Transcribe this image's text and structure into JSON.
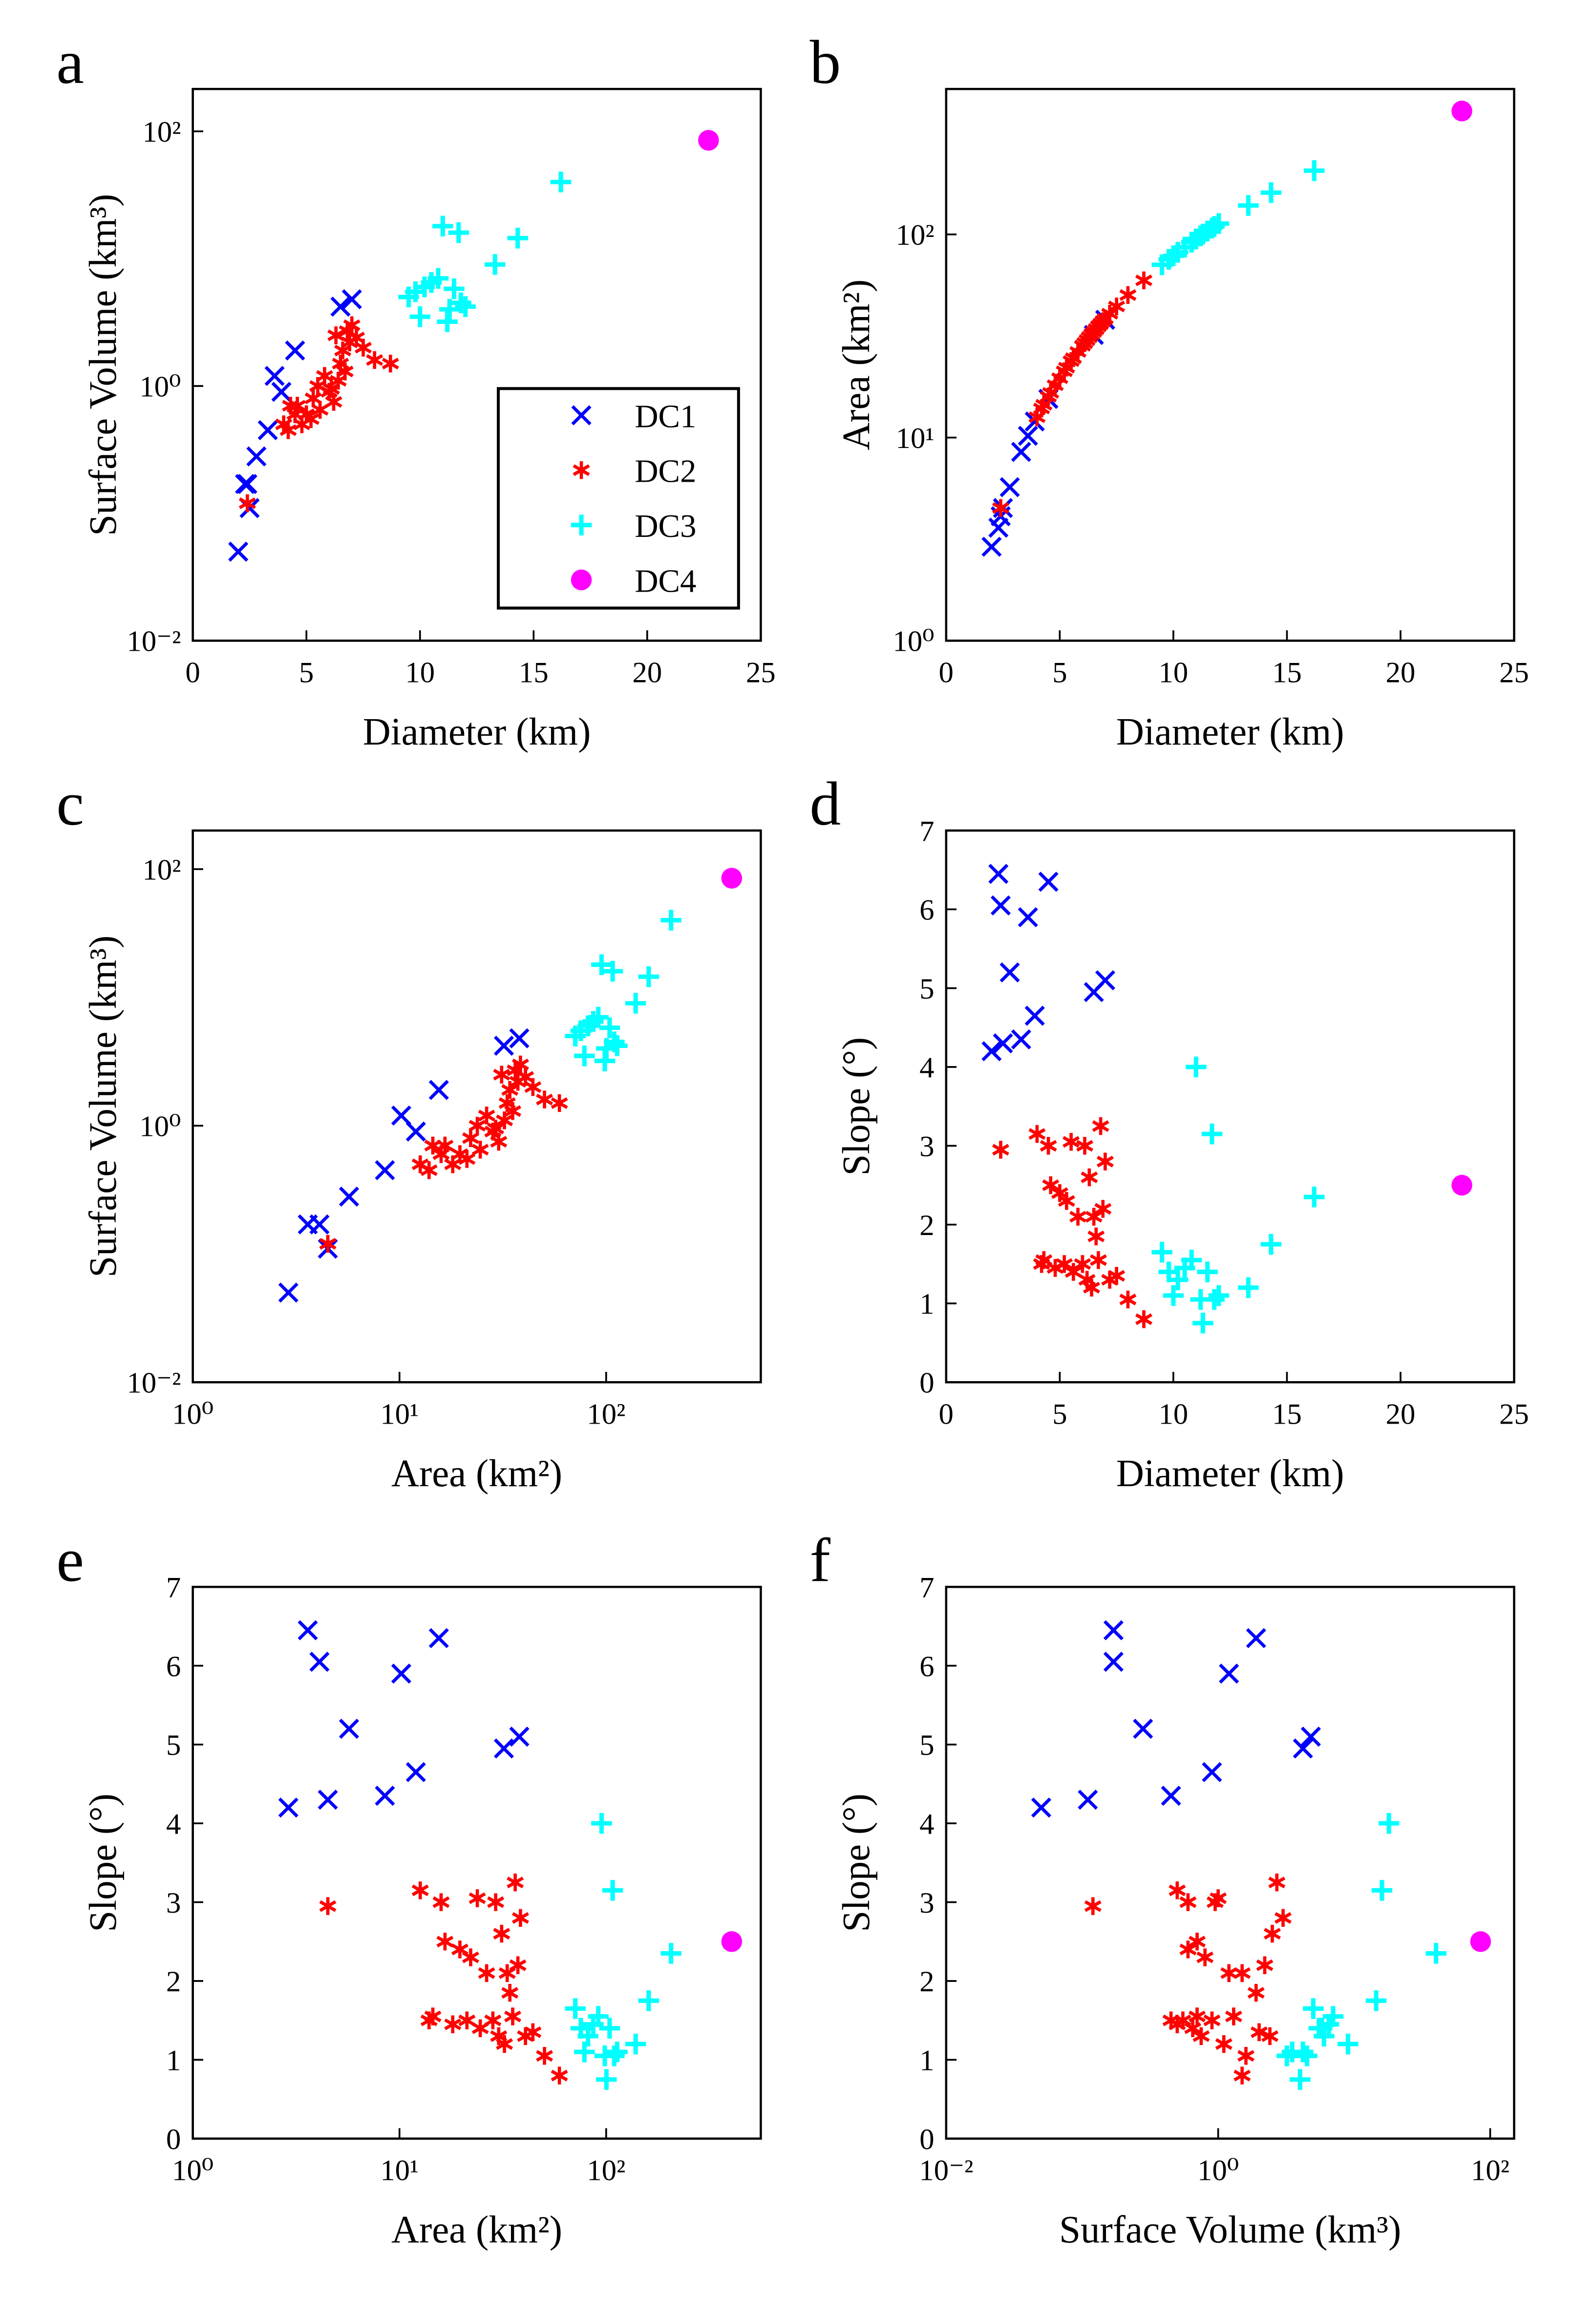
{
  "chart_data": [
    {
      "type": "scatter",
      "label": "a",
      "xlabel": "Diameter (km)",
      "ylabel": "Surface Volume (km³)",
      "xlim": [
        0,
        25
      ],
      "xticks": [
        0,
        5,
        10,
        15,
        20,
        25
      ],
      "xscale": "linear",
      "ylim": [
        0.01,
        215
      ],
      "yticks": [
        {
          "value": 0.01,
          "label": "10⁻²"
        },
        {
          "value": 1,
          "label": "10⁰"
        },
        {
          "value": 100,
          "label": "10²"
        }
      ],
      "yscale": "log",
      "legend": "lower right",
      "series": [
        {
          "name": "DC1",
          "color": "#0000ff",
          "marker": "x",
          "x": [
            2.0,
            2.3,
            2.4,
            2.5,
            2.8,
            3.3,
            3.6,
            3.9,
            4.5,
            6.5,
            7.0
          ],
          "y": [
            0.05,
            0.17,
            0.17,
            0.11,
            0.28,
            0.45,
            1.2,
            0.9,
            1.9,
            4.2,
            4.8
          ]
        },
        {
          "name": "DC2",
          "color": "#ff0000",
          "marker": "*",
          "x": [
            2.4,
            4.0,
            4.2,
            4.3,
            4.5,
            4.6,
            4.8,
            5.0,
            5.2,
            5.3,
            5.5,
            5.6,
            5.8,
            6.0,
            6.1,
            6.2,
            6.3,
            6.4,
            6.5,
            6.6,
            6.7,
            6.8,
            6.9,
            7.0,
            7.2,
            7.5,
            8.0,
            8.7
          ],
          "y": [
            0.12,
            0.5,
            0.45,
            0.7,
            0.6,
            0.7,
            0.5,
            0.6,
            0.55,
            0.8,
            1.0,
            0.65,
            1.2,
            0.9,
            0.95,
            0.75,
            2.5,
            1.1,
            1.5,
            1.9,
            1.3,
            2.7,
            2.2,
            3.0,
            2.4,
            2.0,
            1.6,
            1.5
          ]
        },
        {
          "name": "DC3",
          "color": "#00ffff",
          "marker": "+",
          "x": [
            9.5,
            9.8,
            10.0,
            10.2,
            10.5,
            10.8,
            11.0,
            11.2,
            11.3,
            11.5,
            11.7,
            11.8,
            12.0,
            13.3,
            14.3,
            16.2
          ],
          "y": [
            5.0,
            5.5,
            3.5,
            6.0,
            6.5,
            7.0,
            18,
            3.2,
            4.0,
            5.8,
            16,
            4.5,
            4.2,
            9,
            14.5,
            40
          ]
        },
        {
          "name": "DC4",
          "color": "#ff00ff",
          "marker": "o",
          "x": [
            22.7
          ],
          "y": [
            85
          ]
        }
      ]
    },
    {
      "type": "scatter",
      "label": "b",
      "xlabel": "Diameter (km)",
      "ylabel": "Area (km²)",
      "xlim": [
        0,
        25
      ],
      "xticks": [
        0,
        5,
        10,
        15,
        20,
        25
      ],
      "xscale": "linear",
      "ylim": [
        1,
        520
      ],
      "yticks": [
        {
          "value": 1,
          "label": "10⁰"
        },
        {
          "value": 10,
          "label": "10¹"
        },
        {
          "value": 100,
          "label": "10²"
        }
      ],
      "yscale": "log",
      "series": [
        {
          "color": "#0000ff",
          "marker": "x",
          "x": [
            2.0,
            2.3,
            2.4,
            2.5,
            2.8,
            3.3,
            3.6,
            3.9,
            4.5,
            6.5,
            7.0
          ],
          "y": [
            2.9,
            3.6,
            4.1,
            4.5,
            5.7,
            8.5,
            10.2,
            12,
            15.5,
            32,
            38
          ]
        },
        {
          "color": "#ff0000",
          "marker": "*",
          "x": [
            2.4,
            4.0,
            4.2,
            4.3,
            4.5,
            4.6,
            4.8,
            5.0,
            5.2,
            5.3,
            5.5,
            5.6,
            5.8,
            6.0,
            6.1,
            6.2,
            6.3,
            6.4,
            6.5,
            6.6,
            6.7,
            6.8,
            6.9,
            7.0,
            7.2,
            7.5,
            8.0,
            8.7
          ],
          "y": [
            4.5,
            12.6,
            13.9,
            14.5,
            15.9,
            16.6,
            18.1,
            19.6,
            21.2,
            22.1,
            23.8,
            24.6,
            26.4,
            28.3,
            29.2,
            30.2,
            31.2,
            32.2,
            33.2,
            34.2,
            35.3,
            36.3,
            37.4,
            38.5,
            40.7,
            44.2,
            50.3,
            59.4
          ]
        },
        {
          "color": "#00ffff",
          "marker": "+",
          "x": [
            9.5,
            9.8,
            10.0,
            10.2,
            10.5,
            10.8,
            11.0,
            11.2,
            11.3,
            11.5,
            11.7,
            11.8,
            12.0,
            13.3,
            14.3,
            16.2
          ],
          "y": [
            70.9,
            75.4,
            78.5,
            81.7,
            86.6,
            91.6,
            95.0,
            98.5,
            100.3,
            103.9,
            107.5,
            109.4,
            113.1,
            138.9,
            160.6,
            206.1
          ]
        },
        {
          "color": "#ff00ff",
          "marker": "o",
          "x": [
            22.7
          ],
          "y": [
            405
          ]
        }
      ]
    },
    {
      "type": "scatter",
      "label": "c",
      "xlabel": "Area  (km²)",
      "ylabel": "Surface Volume (km³)",
      "xlim": [
        1,
        560
      ],
      "xticks": [
        {
          "value": 1,
          "label": "10⁰"
        },
        {
          "value": 10,
          "label": "10¹"
        },
        {
          "value": 100,
          "label": "10²"
        }
      ],
      "xscale": "log",
      "ylim": [
        0.01,
        200
      ],
      "yticks": [
        {
          "value": 0.01,
          "label": "10⁻²"
        },
        {
          "value": 1,
          "label": "10⁰"
        },
        {
          "value": 100,
          "label": "10²"
        }
      ],
      "yscale": "log",
      "series": [
        {
          "color": "#0000ff",
          "marker": "x",
          "x": [
            2.9,
            3.6,
            4.1,
            4.5,
            5.7,
            8.5,
            10.2,
            12,
            15.5,
            32,
            38
          ],
          "y": [
            0.05,
            0.17,
            0.17,
            0.11,
            0.28,
            0.45,
            1.2,
            0.9,
            1.9,
            4.2,
            4.8
          ]
        },
        {
          "color": "#ff0000",
          "marker": "*",
          "x": [
            4.5,
            12.6,
            13.9,
            14.5,
            15.9,
            16.6,
            18.1,
            19.6,
            21.2,
            22.1,
            23.8,
            24.6,
            26.4,
            28.3,
            29.2,
            30.2,
            31.2,
            32.2,
            33.2,
            34.2,
            35.3,
            36.3,
            37.4,
            38.5,
            40.7,
            44.2,
            50.3,
            59.4
          ],
          "y": [
            0.12,
            0.5,
            0.45,
            0.7,
            0.6,
            0.7,
            0.5,
            0.6,
            0.55,
            0.8,
            1.0,
            0.65,
            1.2,
            0.9,
            0.95,
            0.75,
            2.5,
            1.1,
            1.5,
            1.9,
            1.3,
            2.7,
            2.2,
            3.0,
            2.4,
            2.0,
            1.6,
            1.5
          ]
        },
        {
          "color": "#00ffff",
          "marker": "+",
          "x": [
            70.9,
            75.4,
            78.5,
            81.7,
            86.6,
            91.6,
            95.0,
            98.5,
            100.3,
            103.9,
            107.5,
            109.4,
            113.1,
            138.9,
            160.6,
            206.1
          ],
          "y": [
            5.0,
            5.5,
            3.5,
            6.0,
            6.5,
            7.0,
            18,
            3.2,
            4.0,
            5.8,
            16,
            4.5,
            4.2,
            9,
            14.5,
            40
          ]
        },
        {
          "color": "#ff00ff",
          "marker": "o",
          "x": [
            405
          ],
          "y": [
            85
          ]
        }
      ]
    },
    {
      "type": "scatter",
      "label": "d",
      "xlabel": "Diameter (km)",
      "ylabel": "Slope (°)",
      "xlim": [
        0,
        25
      ],
      "xticks": [
        0,
        5,
        10,
        15,
        20,
        25
      ],
      "xscale": "linear",
      "ylim": [
        0,
        7
      ],
      "yticks": [
        0,
        1,
        2,
        3,
        4,
        5,
        6,
        7
      ],
      "yscale": "linear",
      "series": [
        {
          "color": "#0000ff",
          "marker": "x",
          "x": [
            2.0,
            2.3,
            2.4,
            2.5,
            2.8,
            3.3,
            3.6,
            3.9,
            4.5,
            6.5,
            7.0
          ],
          "y": [
            4.2,
            6.45,
            6.05,
            4.3,
            5.2,
            4.35,
            5.9,
            4.65,
            6.35,
            4.95,
            5.1
          ]
        },
        {
          "color": "#ff0000",
          "marker": "*",
          "x": [
            2.4,
            4.0,
            4.2,
            4.3,
            4.5,
            4.6,
            4.8,
            5.0,
            5.2,
            5.3,
            5.5,
            5.6,
            5.8,
            6.0,
            6.1,
            6.2,
            6.3,
            6.4,
            6.5,
            6.6,
            6.7,
            6.8,
            6.9,
            7.0,
            7.2,
            7.5,
            8.0,
            8.7
          ],
          "y": [
            2.95,
            3.15,
            1.5,
            1.55,
            3.0,
            2.5,
            1.45,
            2.4,
            1.5,
            2.3,
            3.05,
            1.4,
            2.1,
            1.5,
            3.0,
            1.3,
            2.6,
            1.2,
            2.1,
            1.85,
            1.55,
            3.25,
            2.2,
            2.8,
            1.3,
            1.35,
            1.05,
            0.8
          ]
        },
        {
          "color": "#00ffff",
          "marker": "+",
          "x": [
            9.5,
            9.8,
            10.0,
            10.2,
            10.5,
            10.8,
            11.0,
            11.2,
            11.3,
            11.5,
            11.7,
            11.8,
            12.0,
            13.3,
            14.3,
            16.2
          ],
          "y": [
            1.65,
            1.4,
            1.1,
            1.3,
            1.45,
            1.55,
            4.0,
            1.05,
            0.75,
            1.4,
            3.15,
            1.05,
            1.1,
            1.2,
            1.75,
            2.35
          ]
        },
        {
          "color": "#ff00ff",
          "marker": "o",
          "x": [
            22.7
          ],
          "y": [
            2.5
          ]
        }
      ]
    },
    {
      "type": "scatter",
      "label": "e",
      "xlabel": "Area  (km²)",
      "ylabel": "Slope (°)",
      "xlim": [
        1,
        560
      ],
      "xticks": [
        {
          "value": 1,
          "label": "10⁰"
        },
        {
          "value": 10,
          "label": "10¹"
        },
        {
          "value": 100,
          "label": "10²"
        }
      ],
      "xscale": "log",
      "ylim": [
        0,
        7
      ],
      "yticks": [
        0,
        1,
        2,
        3,
        4,
        5,
        6,
        7
      ],
      "yscale": "linear",
      "series": [
        {
          "color": "#0000ff",
          "marker": "x",
          "x": [
            2.9,
            3.6,
            4.1,
            4.5,
            5.7,
            8.5,
            10.2,
            12,
            15.5,
            32,
            38
          ],
          "y": [
            4.2,
            6.45,
            6.05,
            4.3,
            5.2,
            4.35,
            5.9,
            4.65,
            6.35,
            4.95,
            5.1
          ]
        },
        {
          "color": "#ff0000",
          "marker": "*",
          "x": [
            4.5,
            12.6,
            13.9,
            14.5,
            15.9,
            16.6,
            18.1,
            19.6,
            21.2,
            22.1,
            23.8,
            24.6,
            26.4,
            28.3,
            29.2,
            30.2,
            31.2,
            32.2,
            33.2,
            34.2,
            35.3,
            36.3,
            37.4,
            38.5,
            40.7,
            44.2,
            50.3,
            59.4
          ],
          "y": [
            2.95,
            3.15,
            1.5,
            1.55,
            3.0,
            2.5,
            1.45,
            2.4,
            1.5,
            2.3,
            3.05,
            1.4,
            2.1,
            1.5,
            3.0,
            1.3,
            2.6,
            1.2,
            2.1,
            1.85,
            1.55,
            3.25,
            2.2,
            2.8,
            1.3,
            1.35,
            1.05,
            0.8
          ]
        },
        {
          "color": "#00ffff",
          "marker": "+",
          "x": [
            70.9,
            75.4,
            78.5,
            81.7,
            86.6,
            91.6,
            95.0,
            98.5,
            100.3,
            103.9,
            107.5,
            109.4,
            113.1,
            138.9,
            160.6,
            206.1
          ],
          "y": [
            1.65,
            1.4,
            1.1,
            1.3,
            1.45,
            1.55,
            4.0,
            1.05,
            0.75,
            1.4,
            3.15,
            1.05,
            1.1,
            1.2,
            1.75,
            2.35
          ]
        },
        {
          "color": "#ff00ff",
          "marker": "o",
          "x": [
            405
          ],
          "y": [
            2.5
          ]
        }
      ]
    },
    {
      "type": "scatter",
      "label": "f",
      "xlabel": "Surface Volume (km³)",
      "ylabel": "Slope (°)",
      "xlim": [
        0.01,
        150
      ],
      "xticks": [
        {
          "value": 0.01,
          "label": "10⁻²"
        },
        {
          "value": 1,
          "label": "10⁰"
        },
        {
          "value": 100,
          "label": "10²"
        }
      ],
      "xscale": "log",
      "ylim": [
        0,
        7
      ],
      "yticks": [
        0,
        1,
        2,
        3,
        4,
        5,
        6,
        7
      ],
      "yscale": "linear",
      "series": [
        {
          "color": "#0000ff",
          "marker": "x",
          "x": [
            0.05,
            0.17,
            0.17,
            0.11,
            0.28,
            0.45,
            1.2,
            0.9,
            1.9,
            4.2,
            4.8
          ],
          "y": [
            4.2,
            6.45,
            6.05,
            4.3,
            5.2,
            4.35,
            5.9,
            4.65,
            6.35,
            4.95,
            5.1
          ]
        },
        {
          "color": "#ff0000",
          "marker": "*",
          "x": [
            0.12,
            0.5,
            0.45,
            0.7,
            0.6,
            0.7,
            0.5,
            0.6,
            0.55,
            0.8,
            1.0,
            0.65,
            1.2,
            0.9,
            0.95,
            0.75,
            2.5,
            1.1,
            1.5,
            1.9,
            1.3,
            2.7,
            2.2,
            3.0,
            2.4,
            2.0,
            1.6,
            1.5
          ],
          "y": [
            2.95,
            3.15,
            1.5,
            1.55,
            3.0,
            2.5,
            1.45,
            2.4,
            1.5,
            2.3,
            3.05,
            1.4,
            2.1,
            1.5,
            3.0,
            1.3,
            2.6,
            1.2,
            2.1,
            1.85,
            1.55,
            3.25,
            2.2,
            2.8,
            1.3,
            1.35,
            1.05,
            0.8
          ]
        },
        {
          "color": "#00ffff",
          "marker": "+",
          "x": [
            5.0,
            5.5,
            3.5,
            6.0,
            6.5,
            7.0,
            18,
            3.2,
            4.0,
            5.8,
            16,
            4.5,
            4.2,
            9,
            14.5,
            40
          ],
          "y": [
            1.65,
            1.4,
            1.1,
            1.3,
            1.45,
            1.55,
            4.0,
            1.05,
            0.75,
            1.4,
            3.15,
            1.05,
            1.1,
            1.2,
            1.75,
            2.35
          ]
        },
        {
          "color": "#ff00ff",
          "marker": "o",
          "x": [
            85
          ],
          "y": [
            2.5
          ]
        }
      ]
    }
  ]
}
